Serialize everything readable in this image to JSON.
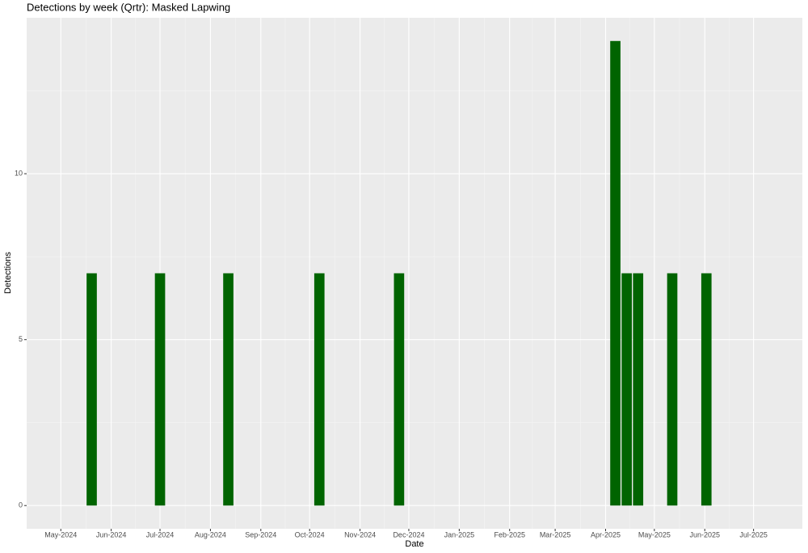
{
  "chart_data": {
    "type": "bar",
    "title": "Detections by week (Qrtr): Masked Lapwing",
    "x_label": "Date",
    "y_label": "Detections",
    "x": [
      "2024-05-20",
      "2024-07-01",
      "2024-08-12",
      "2024-10-07",
      "2024-11-25",
      "2025-04-07",
      "2025-04-14",
      "2025-04-21",
      "2025-05-12",
      "2025-06-02"
    ],
    "values": [
      7,
      7,
      7,
      7,
      7,
      14,
      7,
      7,
      7,
      7
    ],
    "color": "#006400",
    "xlim": [
      "2024-04-10",
      "2025-07-31"
    ],
    "xticks": [
      {
        "value": "2024-05-01",
        "label": "May-2024"
      },
      {
        "value": "2024-06-01",
        "label": "Jun-2024"
      },
      {
        "value": "2024-07-01",
        "label": "Jul-2024"
      },
      {
        "value": "2024-08-01",
        "label": "Aug-2024"
      },
      {
        "value": "2024-09-01",
        "label": "Sep-2024"
      },
      {
        "value": "2024-10-01",
        "label": "Oct-2024"
      },
      {
        "value": "2024-11-01",
        "label": "Nov-2024"
      },
      {
        "value": "2024-12-01",
        "label": "Dec-2024"
      },
      {
        "value": "2025-01-01",
        "label": "Jan-2025"
      },
      {
        "value": "2025-02-01",
        "label": "Feb-2025"
      },
      {
        "value": "2025-03-01",
        "label": "Mar-2025"
      },
      {
        "value": "2025-04-01",
        "label": "Apr-2025"
      },
      {
        "value": "2025-05-01",
        "label": "May-2025"
      },
      {
        "value": "2025-06-01",
        "label": "Jun-2025"
      },
      {
        "value": "2025-07-01",
        "label": "Jul-2025"
      }
    ],
    "ylim": [
      -0.7,
      14.7
    ],
    "yticks": [
      0,
      5,
      10
    ],
    "grid": true
  }
}
